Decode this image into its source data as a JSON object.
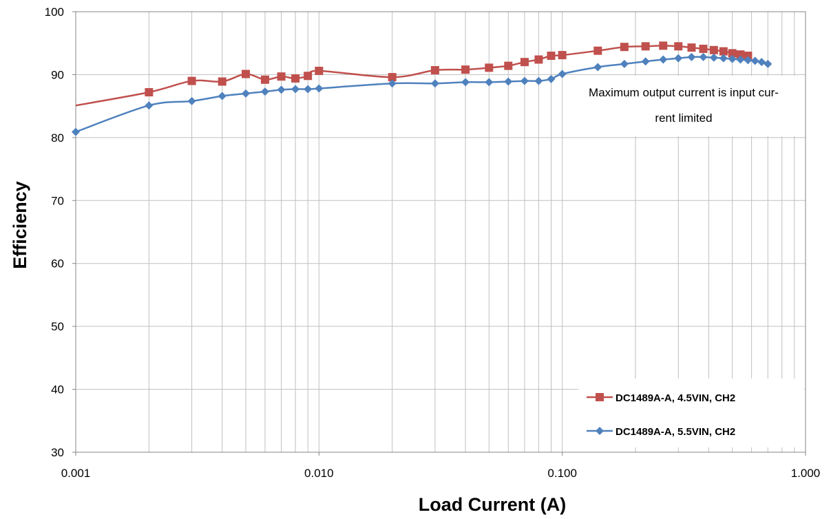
{
  "chart_data": {
    "type": "line",
    "xscale": "log",
    "xlim": [
      0.001,
      1.0
    ],
    "ylim": [
      30,
      100
    ],
    "xlabel": "Load Current (A)",
    "ylabel": "Efficiency",
    "x_ticks": [
      "0.001",
      "0.010",
      "0.100",
      "1.000"
    ],
    "y_ticks": [
      "30",
      "40",
      "50",
      "60",
      "70",
      "80",
      "90",
      "100"
    ],
    "grid": true,
    "legend_position": "bottom-right",
    "annotation": {
      "lines": [
        "Maximum output current is input cur-",
        "rent limited"
      ]
    },
    "series": [
      {
        "name": "DC1489A-A, 4.5VIN, CH2",
        "color": "#c0504d",
        "marker": "square",
        "x": [
          0.001,
          0.002,
          0.003,
          0.004,
          0.005,
          0.006,
          0.007,
          0.008,
          0.009,
          0.01,
          0.02,
          0.03,
          0.04,
          0.05,
          0.06,
          0.07,
          0.08,
          0.09,
          0.1,
          0.14,
          0.18,
          0.22,
          0.26,
          0.3,
          0.34,
          0.38,
          0.42,
          0.46,
          0.5,
          0.54,
          0.58
        ],
        "y": [
          85.1,
          87.2,
          89.0,
          88.9,
          90.1,
          89.2,
          89.7,
          89.4,
          89.8,
          90.6,
          89.6,
          90.7,
          90.8,
          91.1,
          91.4,
          92.0,
          92.4,
          93.0,
          93.1,
          93.8,
          94.4,
          94.5,
          94.6,
          94.5,
          94.3,
          94.1,
          93.9,
          93.7,
          93.4,
          93.2,
          93.0
        ]
      },
      {
        "name": "DC1489A-A, 5.5VIN, CH2",
        "color": "#4f81bd",
        "marker": "diamond",
        "x": [
          0.001,
          0.002,
          0.003,
          0.004,
          0.005,
          0.006,
          0.007,
          0.008,
          0.009,
          0.01,
          0.02,
          0.03,
          0.04,
          0.05,
          0.06,
          0.07,
          0.08,
          0.09,
          0.1,
          0.14,
          0.18,
          0.22,
          0.26,
          0.3,
          0.34,
          0.38,
          0.42,
          0.46,
          0.5,
          0.54,
          0.58,
          0.62,
          0.66,
          0.7
        ],
        "y": [
          80.9,
          85.1,
          85.8,
          86.6,
          87.0,
          87.3,
          87.6,
          87.7,
          87.7,
          87.8,
          88.6,
          88.6,
          88.8,
          88.8,
          88.9,
          89.0,
          89.0,
          89.3,
          90.1,
          91.2,
          91.7,
          92.1,
          92.4,
          92.6,
          92.8,
          92.8,
          92.7,
          92.6,
          92.5,
          92.4,
          92.3,
          92.2,
          92.0,
          91.7
        ]
      }
    ]
  }
}
